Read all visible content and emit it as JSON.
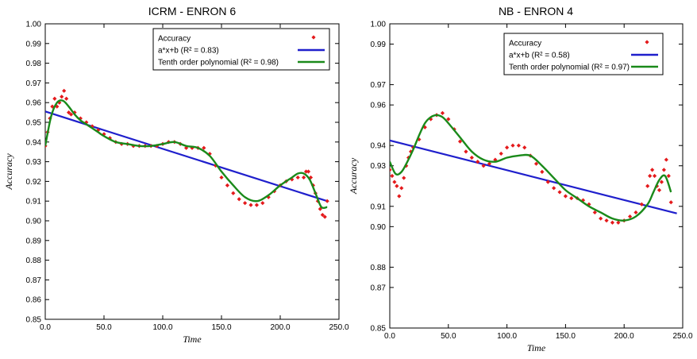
{
  "chart_data": [
    {
      "type": "scatter",
      "title": "ICRM - ENRON 6",
      "xlabel": "Time",
      "ylabel": "Accuracy",
      "xlim": [
        0,
        250
      ],
      "ylim": [
        0.85,
        1.0
      ],
      "xticks": [
        "0.0",
        "50.0",
        "100.0",
        "150.0",
        "200.0",
        "250.0"
      ],
      "yticks": [
        "0.85",
        "0.86",
        "0.87",
        "0.88",
        "0.89",
        "0.90",
        "0.91",
        "0.92",
        "0.93",
        "0.94",
        "0.95",
        "0.96",
        "0.97",
        "0.98",
        "0.99",
        "1.00"
      ],
      "legend_position": "top-right",
      "legend": [
        {
          "text": "Accuracy",
          "color": "#e41a1c",
          "kind": "marker"
        },
        {
          "text": "a*x+b (R² = 0.83)",
          "color": "#1f1fcc",
          "kind": "line"
        },
        {
          "text": "Tenth order polynomial (R² = 0.98)",
          "color": "#1a8a1a",
          "kind": "line"
        }
      ],
      "series": [
        {
          "name": "Accuracy",
          "kind": "points",
          "color": "#e41a1c",
          "x": [
            0,
            2,
            4,
            6,
            8,
            10,
            12,
            14,
            16,
            18,
            20,
            22,
            25,
            30,
            35,
            40,
            45,
            50,
            55,
            60,
            65,
            70,
            75,
            80,
            85,
            90,
            95,
            100,
            105,
            110,
            115,
            120,
            125,
            130,
            135,
            140,
            145,
            150,
            155,
            160,
            165,
            170,
            175,
            180,
            185,
            190,
            195,
            200,
            205,
            210,
            215,
            220,
            222,
            224,
            226,
            228,
            230,
            232,
            234,
            236,
            238,
            240
          ],
          "y": [
            0.938,
            0.945,
            0.952,
            0.958,
            0.962,
            0.958,
            0.96,
            0.963,
            0.966,
            0.962,
            0.955,
            0.954,
            0.955,
            0.952,
            0.95,
            0.948,
            0.946,
            0.944,
            0.942,
            0.94,
            0.939,
            0.939,
            0.938,
            0.938,
            0.938,
            0.938,
            0.938,
            0.939,
            0.94,
            0.94,
            0.939,
            0.937,
            0.937,
            0.937,
            0.937,
            0.934,
            0.928,
            0.922,
            0.918,
            0.914,
            0.911,
            0.909,
            0.908,
            0.908,
            0.909,
            0.912,
            0.915,
            0.918,
            0.92,
            0.921,
            0.922,
            0.922,
            0.925,
            0.925,
            0.922,
            0.918,
            0.914,
            0.91,
            0.906,
            0.903,
            0.902,
            0.91
          ]
        },
        {
          "name": "a*x+b (R² = 0.83)",
          "kind": "line",
          "color": "#1f1fcc",
          "x": [
            0,
            240
          ],
          "y": [
            0.9555,
            0.91
          ]
        },
        {
          "name": "Tenth order polynomial (R² = 0.98)",
          "kind": "smooth",
          "color": "#1a8a1a",
          "x": [
            0,
            5,
            10,
            15,
            20,
            25,
            30,
            35,
            40,
            45,
            50,
            60,
            70,
            80,
            90,
            100,
            110,
            120,
            130,
            140,
            150,
            160,
            170,
            180,
            190,
            200,
            210,
            215,
            220,
            225,
            230,
            235,
            240
          ],
          "y": [
            0.938,
            0.953,
            0.96,
            0.961,
            0.958,
            0.954,
            0.951,
            0.949,
            0.947,
            0.945,
            0.943,
            0.94,
            0.939,
            0.938,
            0.938,
            0.939,
            0.94,
            0.938,
            0.937,
            0.933,
            0.925,
            0.918,
            0.912,
            0.91,
            0.913,
            0.918,
            0.922,
            0.924,
            0.924,
            0.921,
            0.914,
            0.907,
            0.907
          ]
        }
      ]
    },
    {
      "type": "scatter",
      "title": "NB - ENRON 4",
      "xlabel": "Time",
      "ylabel": "Accuracy",
      "xlim": [
        0,
        250
      ],
      "ylim": [
        0.85,
        1.0
      ],
      "xticks": [
        "0.0",
        "50.0",
        "100.0",
        "150.0",
        "200.0",
        "250.0"
      ],
      "yticks": [
        "0.85",
        "0.87",
        "0.88",
        "0.90",
        "0.91",
        "0.93",
        "0.94",
        "0.96",
        "0.97",
        "0.99",
        "1.00"
      ],
      "legend_position": "top-right",
      "legend": [
        {
          "text": "Accuracy",
          "color": "#e41a1c",
          "kind": "marker"
        },
        {
          "text": "a*x+b (R² = 0.58)",
          "color": "#1f1fcc",
          "kind": "line"
        },
        {
          "text": "Tenth order polynomial (R² = 0.97)",
          "color": "#1a8a1a",
          "kind": "line"
        }
      ],
      "series": [
        {
          "name": "Accuracy",
          "kind": "points",
          "color": "#e41a1c",
          "x": [
            0,
            2,
            4,
            6,
            8,
            10,
            12,
            14,
            16,
            18,
            20,
            25,
            30,
            35,
            40,
            45,
            50,
            55,
            60,
            65,
            70,
            75,
            80,
            85,
            90,
            95,
            100,
            105,
            110,
            115,
            120,
            125,
            130,
            135,
            140,
            145,
            150,
            155,
            160,
            165,
            170,
            175,
            180,
            185,
            190,
            195,
            200,
            205,
            210,
            215,
            220,
            222,
            224,
            226,
            228,
            230,
            232,
            234,
            236,
            238,
            240
          ],
          "y": [
            0.928,
            0.925,
            0.922,
            0.92,
            0.915,
            0.919,
            0.924,
            0.93,
            0.934,
            0.937,
            0.939,
            0.943,
            0.949,
            0.953,
            0.955,
            0.956,
            0.953,
            0.948,
            0.942,
            0.937,
            0.934,
            0.932,
            0.93,
            0.931,
            0.933,
            0.936,
            0.939,
            0.94,
            0.94,
            0.939,
            0.935,
            0.931,
            0.927,
            0.922,
            0.919,
            0.917,
            0.915,
            0.914,
            0.914,
            0.913,
            0.911,
            0.907,
            0.904,
            0.903,
            0.902,
            0.902,
            0.903,
            0.905,
            0.907,
            0.911,
            0.92,
            0.925,
            0.928,
            0.925,
            0.92,
            0.918,
            0.922,
            0.928,
            0.933,
            0.925,
            0.912
          ]
        },
        {
          "name": "a*x+b (R² = 0.58)",
          "kind": "line",
          "color": "#1f1fcc",
          "x": [
            0,
            245
          ],
          "y": [
            0.9425,
            0.9065
          ]
        },
        {
          "name": "Tenth order polynomial (R² = 0.97)",
          "kind": "smooth",
          "color": "#1a8a1a",
          "x": [
            0,
            5,
            10,
            15,
            20,
            25,
            30,
            35,
            40,
            45,
            50,
            60,
            70,
            80,
            90,
            100,
            110,
            120,
            130,
            140,
            150,
            160,
            170,
            180,
            190,
            200,
            210,
            220,
            225,
            230,
            235,
            240
          ],
          "y": [
            0.932,
            0.926,
            0.927,
            0.932,
            0.938,
            0.945,
            0.951,
            0.954,
            0.955,
            0.954,
            0.951,
            0.944,
            0.937,
            0.933,
            0.932,
            0.934,
            0.935,
            0.935,
            0.93,
            0.924,
            0.918,
            0.914,
            0.91,
            0.907,
            0.904,
            0.903,
            0.905,
            0.911,
            0.917,
            0.923,
            0.925,
            0.917
          ]
        }
      ]
    }
  ]
}
